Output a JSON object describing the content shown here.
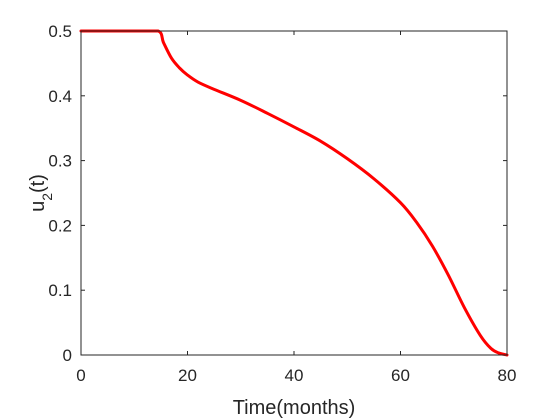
{
  "chart_data": {
    "type": "line",
    "xlabel": "Time(months)",
    "ylabel": {
      "main": "u",
      "subscript": "2",
      "suffix": "(t)"
    },
    "xlim": [
      0,
      80
    ],
    "ylim": [
      0,
      0.5
    ],
    "xticks": [
      0,
      20,
      40,
      60,
      80
    ],
    "xtick_labels": [
      "0",
      "20",
      "40",
      "60",
      "80"
    ],
    "yticks": [
      0,
      0.1,
      0.2,
      0.3,
      0.4,
      0.5
    ],
    "ytick_labels": [
      "0",
      "0.1",
      "0.2",
      "0.3",
      "0.4",
      "0.5"
    ],
    "grid": false,
    "series": [
      {
        "color": "#ff0000",
        "x": [
          0,
          5,
          10,
          14.5,
          15.5,
          17,
          18.5,
          20,
          22,
          25,
          30,
          35,
          40,
          45,
          50,
          55,
          60,
          63,
          66,
          69,
          72,
          75,
          77,
          78.5,
          80
        ],
        "y": [
          0.5,
          0.5,
          0.5,
          0.5,
          0.482,
          0.458,
          0.443,
          0.432,
          0.421,
          0.41,
          0.393,
          0.373,
          0.352,
          0.33,
          0.303,
          0.272,
          0.235,
          0.205,
          0.168,
          0.123,
          0.073,
          0.03,
          0.01,
          0.003,
          0.0
        ]
      }
    ]
  }
}
